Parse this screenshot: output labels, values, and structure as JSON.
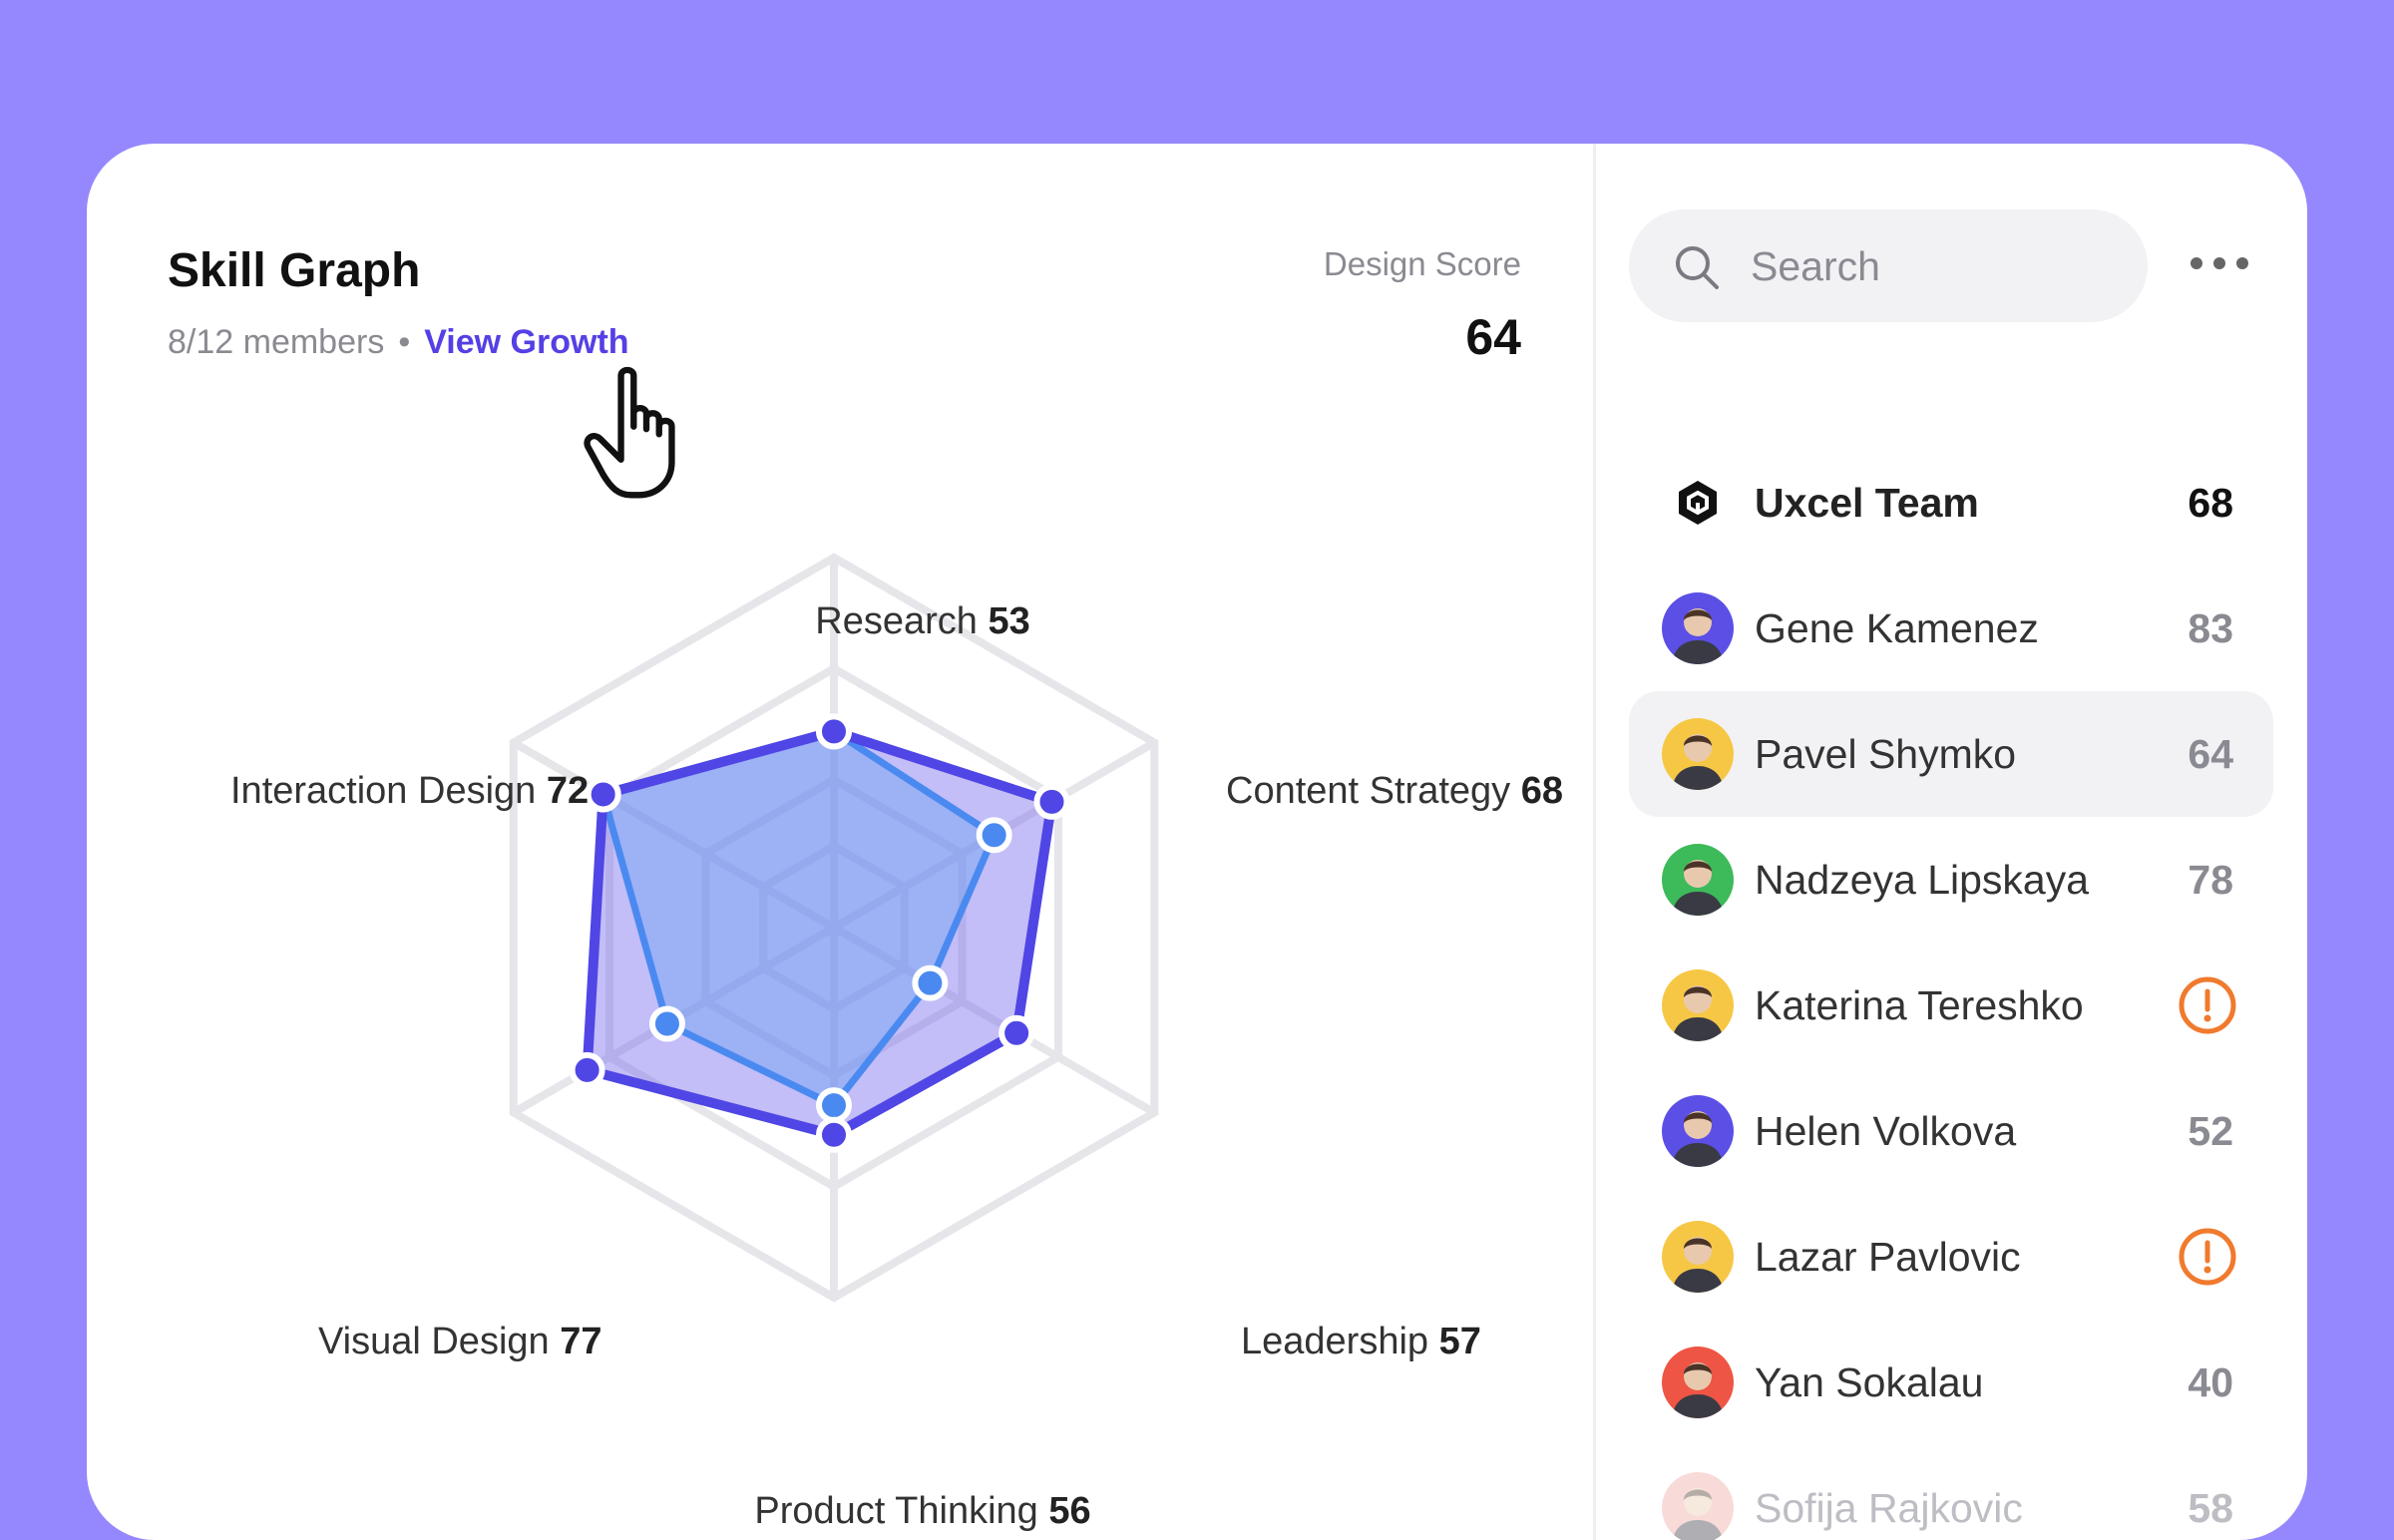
{
  "header": {
    "title": "Skill Graph",
    "members": "8/12 members",
    "separator": "•",
    "view_growth": "View Growth",
    "score_label": "Design Score",
    "score_value": "64"
  },
  "chart_data": {
    "type": "radar",
    "title": "Skill Graph",
    "axes": [
      {
        "label": "Research",
        "value": "53"
      },
      {
        "label": "Content Strategy",
        "value": "68"
      },
      {
        "label": "Leadership",
        "value": "57"
      },
      {
        "label": "Product Thinking",
        "value": "56"
      },
      {
        "label": "Visual Design",
        "value": "77"
      },
      {
        "label": "Interaction Design",
        "value": "72"
      }
    ],
    "rmax": 100,
    "series": [
      {
        "color": "#4F46E5",
        "fill": "#7B6CF0",
        "values": [
          53,
          68,
          57,
          56,
          77,
          72
        ]
      },
      {
        "color": "#4A8AF0",
        "fill": "#6FA2F2",
        "values": [
          53,
          50,
          30,
          48,
          52,
          72
        ]
      }
    ]
  },
  "search": {
    "placeholder": "Search"
  },
  "members_list": [
    {
      "name": "Uxcel Team",
      "value": "68",
      "kind": "team"
    },
    {
      "name": "Gene Kamenez",
      "value": "83",
      "avatar_color": "#5B4FE6"
    },
    {
      "name": "Pavel Shymko",
      "value": "64",
      "avatar_color": "#F6C744",
      "active": true
    },
    {
      "name": "Nadzeya Lipskaya",
      "value": "78",
      "avatar_color": "#3DBA5A"
    },
    {
      "name": "Katerina Tereshko",
      "value": "",
      "avatar_color": "#F6C744",
      "warning": true
    },
    {
      "name": "Helen Volkova",
      "value": "52",
      "avatar_color": "#5B4FE6"
    },
    {
      "name": "Lazar Pavlovic",
      "value": "",
      "avatar_color": "#F6C744",
      "warning": true
    },
    {
      "name": "Yan Sokalau",
      "value": "40",
      "avatar_color": "#EE5544"
    },
    {
      "name": "Sofija Rajkovic",
      "value": "58",
      "avatar_color": "#F0A5A0",
      "faded": true
    }
  ],
  "colors": {
    "background": "#9587FD",
    "accent": "#5440E4",
    "warning": "#F07A2D"
  }
}
